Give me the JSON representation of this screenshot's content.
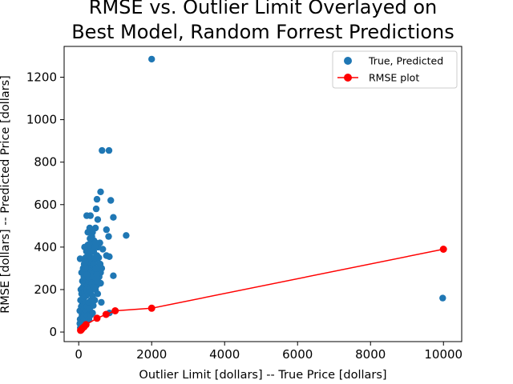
{
  "chart_data": {
    "type": "scatter",
    "title_lines": [
      "RMSE vs. Outlier Limit Overlayed on",
      "Best Model, Random Forrest Predictions"
    ],
    "xlabel": "Outlier Limit [dollars]  --  True Price [dollars]",
    "ylabel": "RMSE [dollars]  --  Predicted Price [dollars]",
    "xlim": [
      -400,
      10500
    ],
    "ylim": [
      -45,
      1345
    ],
    "xticks": [
      0,
      2000,
      4000,
      6000,
      8000,
      10000
    ],
    "yticks": [
      0,
      200,
      400,
      600,
      800,
      1000,
      1200
    ],
    "grid": false,
    "legend_position": "top-right",
    "colors": {
      "scatter": "#1f77b4",
      "rmse": "#ff0000",
      "axes": "#000000"
    },
    "series": [
      {
        "name": "True, Predicted",
        "kind": "scatter",
        "points": [
          [
            2000,
            1285
          ],
          [
            640,
            855
          ],
          [
            830,
            855
          ],
          [
            9980,
            160
          ],
          [
            1300,
            455
          ],
          [
            950,
            540
          ],
          [
            880,
            620
          ],
          [
            600,
            660
          ],
          [
            500,
            625
          ],
          [
            220,
            548
          ],
          [
            320,
            548
          ],
          [
            520,
            530
          ],
          [
            480,
            580
          ],
          [
            760,
            482
          ],
          [
            820,
            450
          ],
          [
            460,
            490
          ],
          [
            300,
            490
          ],
          [
            250,
            470
          ],
          [
            380,
            470
          ],
          [
            580,
            420
          ],
          [
            660,
            390
          ],
          [
            760,
            360
          ],
          [
            840,
            355
          ],
          [
            950,
            265
          ],
          [
            620,
            140
          ],
          [
            840,
            90
          ],
          [
            420,
            430
          ],
          [
            40,
            345
          ],
          [
            80,
            280
          ],
          [
            100,
            240
          ],
          [
            120,
            300
          ],
          [
            150,
            320
          ],
          [
            170,
            260
          ],
          [
            190,
            350
          ],
          [
            210,
            380
          ],
          [
            230,
            320
          ],
          [
            250,
            410
          ],
          [
            270,
            300
          ],
          [
            290,
            360
          ],
          [
            310,
            260
          ],
          [
            330,
            420
          ],
          [
            350,
            330
          ],
          [
            370,
            280
          ],
          [
            390,
            250
          ],
          [
            410,
            380
          ],
          [
            430,
            300
          ],
          [
            450,
            340
          ],
          [
            470,
            260
          ],
          [
            490,
            220
          ],
          [
            510,
            300
          ],
          [
            530,
            400
          ],
          [
            550,
            350
          ],
          [
            570,
            320
          ],
          [
            600,
            280
          ],
          [
            30,
            100
          ],
          [
            40,
            60
          ],
          [
            50,
            150
          ],
          [
            60,
            200
          ],
          [
            70,
            120
          ],
          [
            80,
            180
          ],
          [
            90,
            80
          ],
          [
            100,
            130
          ],
          [
            110,
            210
          ],
          [
            120,
            60
          ],
          [
            130,
            160
          ],
          [
            140,
            230
          ],
          [
            150,
            110
          ],
          [
            160,
            190
          ],
          [
            170,
            90
          ],
          [
            180,
            140
          ],
          [
            190,
            250
          ],
          [
            200,
            170
          ],
          [
            210,
            100
          ],
          [
            220,
            200
          ],
          [
            230,
            120
          ],
          [
            240,
            220
          ],
          [
            250,
            80
          ],
          [
            260,
            180
          ],
          [
            270,
            240
          ],
          [
            280,
            140
          ],
          [
            290,
            200
          ],
          [
            300,
            110
          ],
          [
            320,
            190
          ],
          [
            340,
            150
          ],
          [
            360,
            230
          ],
          [
            380,
            170
          ],
          [
            400,
            210
          ],
          [
            440,
            150
          ],
          [
            460,
            200
          ],
          [
            480,
            240
          ],
          [
            520,
            180
          ],
          [
            560,
            260
          ],
          [
            600,
            230
          ],
          [
            30,
            40
          ],
          [
            45,
            20
          ],
          [
            60,
            35
          ],
          [
            75,
            50
          ],
          [
            90,
            30
          ],
          [
            110,
            45
          ],
          [
            130,
            70
          ],
          [
            150,
            55
          ],
          [
            170,
            40
          ],
          [
            200,
            65
          ],
          [
            240,
            75
          ],
          [
            280,
            60
          ],
          [
            330,
            80
          ],
          [
            380,
            90
          ],
          [
            400,
            125
          ],
          [
            200,
            290
          ],
          [
            240,
            330
          ],
          [
            280,
            400
          ],
          [
            310,
            440
          ],
          [
            340,
            380
          ],
          [
            360,
            450
          ],
          [
            400,
            320
          ],
          [
            440,
            400
          ],
          [
            470,
            420
          ],
          [
            500,
            360
          ],
          [
            540,
            280
          ],
          [
            560,
            230
          ],
          [
            590,
            320
          ],
          [
            630,
            300
          ],
          [
            160,
            400
          ],
          [
            180,
            330
          ],
          [
            140,
            260
          ],
          [
            260,
            260
          ],
          [
            300,
            300
          ],
          [
            420,
            260
          ],
          [
            460,
            300
          ],
          [
            500,
            270
          ],
          [
            520,
            240
          ],
          [
            260,
            290
          ],
          [
            350,
            350
          ],
          [
            440,
            350
          ],
          [
            180,
            300
          ],
          [
            230,
            270
          ]
        ]
      },
      {
        "name": "RMSE plot",
        "kind": "line",
        "points": [
          [
            50,
            8
          ],
          [
            75,
            12
          ],
          [
            100,
            18
          ],
          [
            150,
            25
          ],
          [
            200,
            35
          ],
          [
            500,
            65
          ],
          [
            750,
            83
          ],
          [
            1000,
            100
          ],
          [
            2000,
            112
          ],
          [
            10000,
            390
          ]
        ]
      }
    ]
  }
}
